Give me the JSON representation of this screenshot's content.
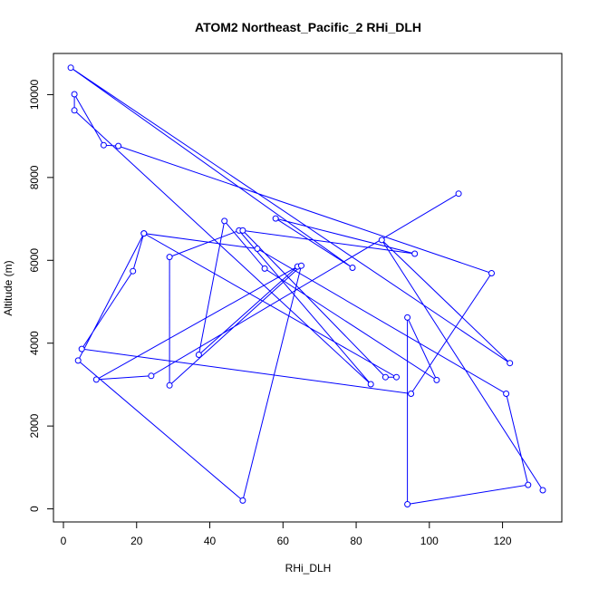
{
  "chart_data": {
    "type": "line",
    "title": "ATOM2 Northeast_Pacific_2 RHi_DLH",
    "xlabel": "RHi_DLH",
    "ylabel": "Altitude (m)",
    "xlim": [
      0,
      131
    ],
    "ylim": [
      100,
      10600
    ],
    "xticks": [
      0,
      20,
      40,
      60,
      80,
      100,
      120
    ],
    "yticks": [
      0,
      2000,
      4000,
      6000,
      8000,
      10000
    ],
    "grid": false,
    "color": "#0000ff",
    "marker": "open-circle",
    "x": [
      108,
      24,
      9,
      64,
      37,
      44,
      55,
      102,
      94,
      94,
      127,
      121,
      53,
      22,
      4,
      49,
      65,
      29,
      29,
      48,
      84,
      3,
      3,
      11,
      15,
      117,
      95,
      5,
      19,
      22,
      91,
      88,
      49,
      96,
      58,
      79,
      2,
      122,
      87,
      131
    ],
    "y": [
      7610,
      3210,
      3120,
      5850,
      3720,
      6950,
      5800,
      3110,
      4620,
      110,
      580,
      2780,
      6280,
      6650,
      3580,
      200,
      5870,
      2980,
      6080,
      6720,
      3010,
      9620,
      10010,
      8780,
      8760,
      5690,
      2780,
      3860,
      5740,
      6650,
      3180,
      3180,
      6720,
      6160,
      7010,
      5820,
      10650,
      3520,
      6490,
      450
    ]
  }
}
